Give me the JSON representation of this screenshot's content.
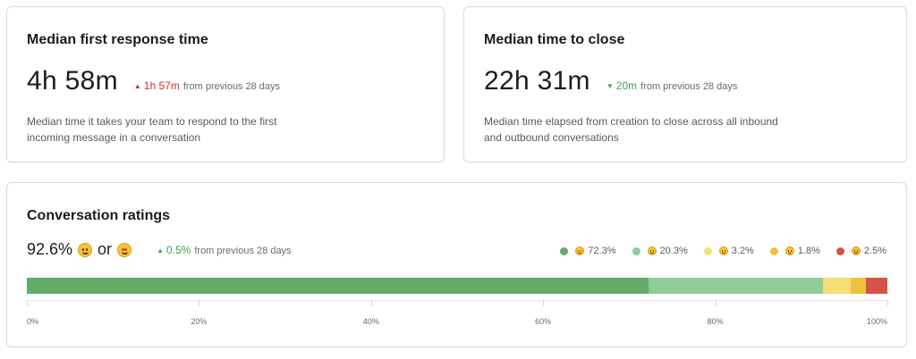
{
  "first_response": {
    "title": "Median first response time",
    "value": "4h 58m",
    "delta": {
      "direction": "up",
      "amount": "1h 57m",
      "suffix": "from previous 28 days",
      "color": "#d0312d"
    },
    "description": "Median time it takes your team to respond to the first incoming message in a conversation"
  },
  "time_to_close": {
    "title": "Median time to close",
    "value": "22h 31m",
    "delta": {
      "direction": "down",
      "amount": "20m",
      "suffix": "from previous 28 days",
      "color": "#3fa34d"
    },
    "description": "Median time elapsed from creation to close across all inbound and outbound conversations"
  },
  "ratings": {
    "title": "Conversation ratings",
    "value": "92.6%",
    "or_text": "or",
    "emoji_a": "grinning-face-icon",
    "emoji_b": "star-struck-icon",
    "delta": {
      "direction": "up",
      "amount": "0.5%",
      "suffix": "from previous 28 days",
      "color": "#3fa34d"
    },
    "legend": [
      {
        "emoji": "star-struck-icon",
        "label": "72.3%",
        "color": "#63ab66"
      },
      {
        "emoji": "grinning-face-icon",
        "label": "20.3%",
        "color": "#8fcc97"
      },
      {
        "emoji": "neutral-face-icon",
        "label": "3.2%",
        "color": "#f6de77"
      },
      {
        "emoji": "frowning-face-icon",
        "label": "1.8%",
        "color": "#efc23d"
      },
      {
        "emoji": "angry-face-icon",
        "label": "2.5%",
        "color": "#d6534a"
      }
    ]
  },
  "chart_data": {
    "type": "bar",
    "orientation": "horizontal-stacked",
    "categories": [
      "Conversation ratings"
    ],
    "series": [
      {
        "values": [
          72.3
        ]
      },
      {
        "values": [
          20.3
        ]
      },
      {
        "values": [
          3.2
        ]
      },
      {
        "values": [
          1.8
        ]
      },
      {
        "values": [
          2.5
        ]
      }
    ],
    "xlim": [
      0,
      100
    ],
    "x_ticks": [
      "0%",
      "20%",
      "40%",
      "60%",
      "80%",
      "100%"
    ],
    "legend_position": "top-right"
  }
}
